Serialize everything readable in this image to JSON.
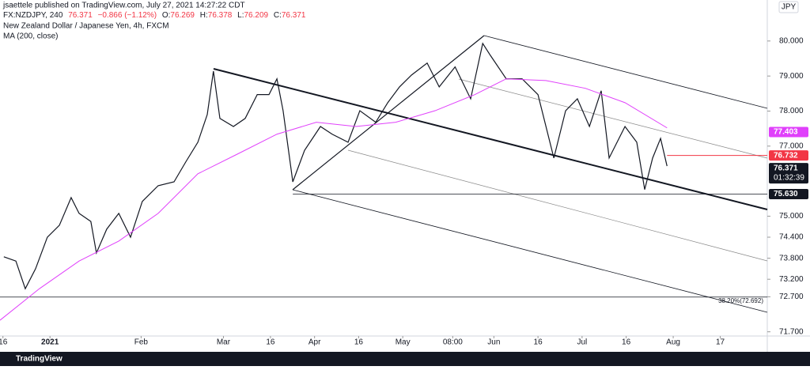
{
  "header": {
    "publisher": "jsaettele published on TradingView.com, July 27, 2021 14:27:22 CDT",
    "symbol": "FX:NZDJPY, 240",
    "last": "76.371",
    "change": "−0.866 (−1.12%)",
    "open_label": "O:",
    "open": "76.269",
    "high_label": "H:",
    "high": "76.378",
    "low_label": "L:",
    "low": "76.209",
    "close_label": "C:",
    "close": "76.371",
    "description": "New Zealand Dollar / Japanese Yen, 4h, FXCM",
    "indicator": "MA (200, close)",
    "currency": "JPY"
  },
  "chart_data": {
    "type": "line",
    "xlim": [
      -17,
      244
    ],
    "ylim": [
      71.58,
      81.17
    ],
    "xticks": [
      {
        "value": -16,
        "label": "16"
      },
      {
        "value": 0,
        "label": "2021"
      },
      {
        "value": 31,
        "label": "Feb"
      },
      {
        "value": 59,
        "label": "Mar"
      },
      {
        "value": 75,
        "label": "16"
      },
      {
        "value": 90,
        "label": "Apr"
      },
      {
        "value": 105,
        "label": "16"
      },
      {
        "value": 120,
        "label": "May"
      },
      {
        "value": 137,
        "label": "08:00"
      },
      {
        "value": 151,
        "label": "Jun"
      },
      {
        "value": 166,
        "label": "16"
      },
      {
        "value": 181,
        "label": "Jul"
      },
      {
        "value": 196,
        "label": "16"
      },
      {
        "value": 212,
        "label": "Aug"
      },
      {
        "value": 228,
        "label": "17"
      }
    ],
    "yticks": [
      {
        "value": 80,
        "label": "80.000"
      },
      {
        "value": 79,
        "label": "79.000"
      },
      {
        "value": 78,
        "label": "78.000"
      },
      {
        "value": 77,
        "label": "77.000"
      },
      {
        "value": 75,
        "label": "75.000"
      },
      {
        "value": 74.4,
        "label": "74.400"
      },
      {
        "value": 73.8,
        "label": "73.800"
      },
      {
        "value": 73.2,
        "label": "73.200"
      },
      {
        "value": 72.7,
        "label": "72.700"
      },
      {
        "value": 71.7,
        "label": "71.700"
      }
    ],
    "series": [
      {
        "name": "NZDJPY",
        "color": "#131722",
        "x": [
          -15.7,
          -11.6,
          -8.4,
          -4.9,
          -0.9,
          3.2,
          7.2,
          9.9,
          13.9,
          15.8,
          19.3,
          23.4,
          27.4,
          31.4,
          36.8,
          42.2,
          46.2,
          50.3,
          53.5,
          55.6,
          57.8,
          62.4,
          66.4,
          70.5,
          74.5,
          77.2,
          79.3,
          82.6,
          86.6,
          92.0,
          96.0,
          101.4,
          105.4,
          110.8,
          114.9,
          118.9,
          123.0,
          128.3,
          132.4,
          137.8,
          143.1,
          147.2,
          149.8,
          155.2,
          160.6,
          166.0,
          171.4,
          175.4,
          179.4,
          183.5,
          187.5,
          190.2,
          195.6,
          199.6,
          202.3,
          205.0,
          207.7,
          209.9
        ],
        "values": [
          73.84,
          73.72,
          72.93,
          73.5,
          74.4,
          74.74,
          75.53,
          75.08,
          74.85,
          73.95,
          74.63,
          75.08,
          74.4,
          75.42,
          75.87,
          75.98,
          76.55,
          77.11,
          77.9,
          79.14,
          77.79,
          77.56,
          77.79,
          78.47,
          78.47,
          78.92,
          78.01,
          75.98,
          76.88,
          77.56,
          77.34,
          77.11,
          78.01,
          77.68,
          78.24,
          78.69,
          79.03,
          79.37,
          78.69,
          79.26,
          78.35,
          79.93,
          79.59,
          78.92,
          78.92,
          78.47,
          76.66,
          78.01,
          78.35,
          77.56,
          78.58,
          76.66,
          77.56,
          77.11,
          75.76,
          76.66,
          77.22,
          76.43
        ]
      },
      {
        "name": "MA (200, close)",
        "color": "#e040fb",
        "x": [
          -17.0,
          -3.6,
          9.9,
          23.4,
          36.8,
          50.3,
          63.7,
          77.2,
          90.6,
          104.1,
          117.6,
          131.0,
          144.5,
          155.2,
          168.7,
          182.1,
          195.6,
          209.9
        ],
        "values": [
          72.03,
          72.93,
          73.72,
          74.29,
          75.08,
          76.21,
          76.77,
          77.34,
          77.68,
          77.56,
          77.68,
          78.01,
          78.47,
          78.92,
          78.87,
          78.65,
          78.24,
          77.52
        ]
      }
    ],
    "price_labels": [
      {
        "value": 77.403,
        "label": "77.403",
        "color": "#e040fb"
      },
      {
        "value": 76.732,
        "label": "76.732",
        "color": "#f23645"
      },
      {
        "value": 76.371,
        "label": "76.371",
        "color": "#131722"
      },
      {
        "value": 75.63,
        "label": "75.630",
        "color": "#131722"
      }
    ],
    "countdown": "01:32:39",
    "hlines": [
      {
        "value": 75.63
      },
      {
        "value": 72.692,
        "label": "38.20%(72.692)"
      }
    ]
  },
  "footer": {
    "brand": "TradingView"
  }
}
